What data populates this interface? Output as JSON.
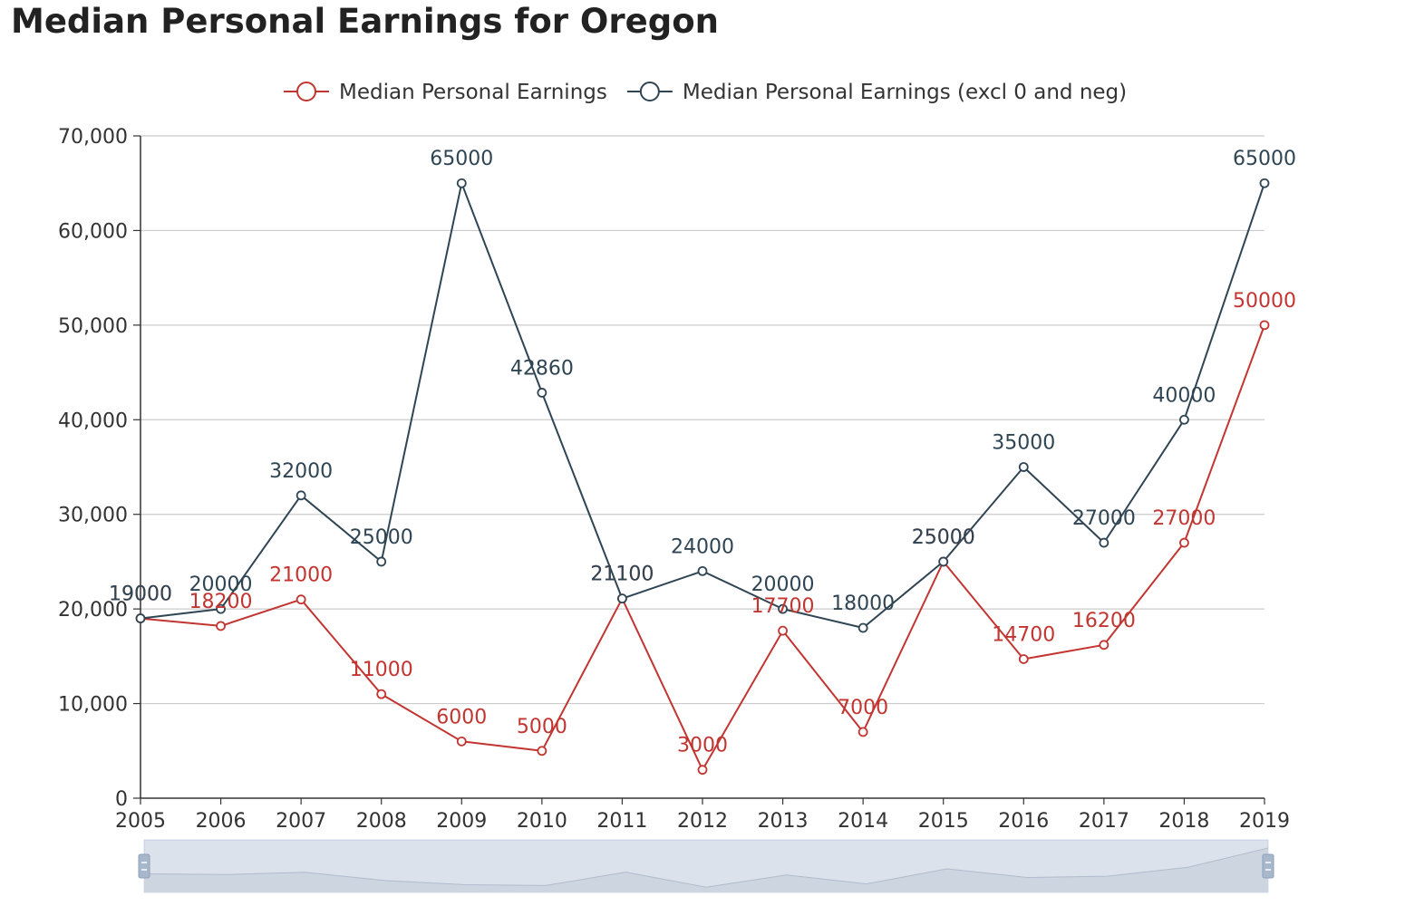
{
  "title": "Median Personal Earnings for Oregon",
  "chart_data": {
    "type": "line",
    "title": "Median Personal Earnings for Oregon",
    "xlabel": "",
    "ylabel": "",
    "x": [
      "2005",
      "2006",
      "2007",
      "2008",
      "2009",
      "2010",
      "2011",
      "2012",
      "2013",
      "2014",
      "2015",
      "2016",
      "2017",
      "2018",
      "2019"
    ],
    "ylim": [
      0,
      70000
    ],
    "yticks": [
      0,
      10000,
      20000,
      30000,
      40000,
      50000,
      60000,
      70000
    ],
    "ytick_labels": [
      "0",
      "10,000",
      "20,000",
      "30,000",
      "40,000",
      "50,000",
      "60,000",
      "70,000"
    ],
    "grid": true,
    "legend_position": "top-center",
    "series": [
      {
        "name": "Median Personal Earnings",
        "color": "#c23531",
        "values": [
          19000,
          18200,
          21000,
          11000,
          6000,
          5000,
          21100,
          3000,
          17700,
          7000,
          25000,
          14700,
          16200,
          27000,
          50000
        ]
      },
      {
        "name": "Median Personal Earnings (excl 0 and neg)",
        "color": "#2f4554",
        "values": [
          19000,
          20000,
          32000,
          25000,
          65000,
          42860,
          21100,
          24000,
          20000,
          18000,
          25000,
          35000,
          27000,
          40000,
          65000
        ]
      }
    ]
  },
  "data_zoom": {
    "start_percent": 0,
    "end_percent": 100
  }
}
